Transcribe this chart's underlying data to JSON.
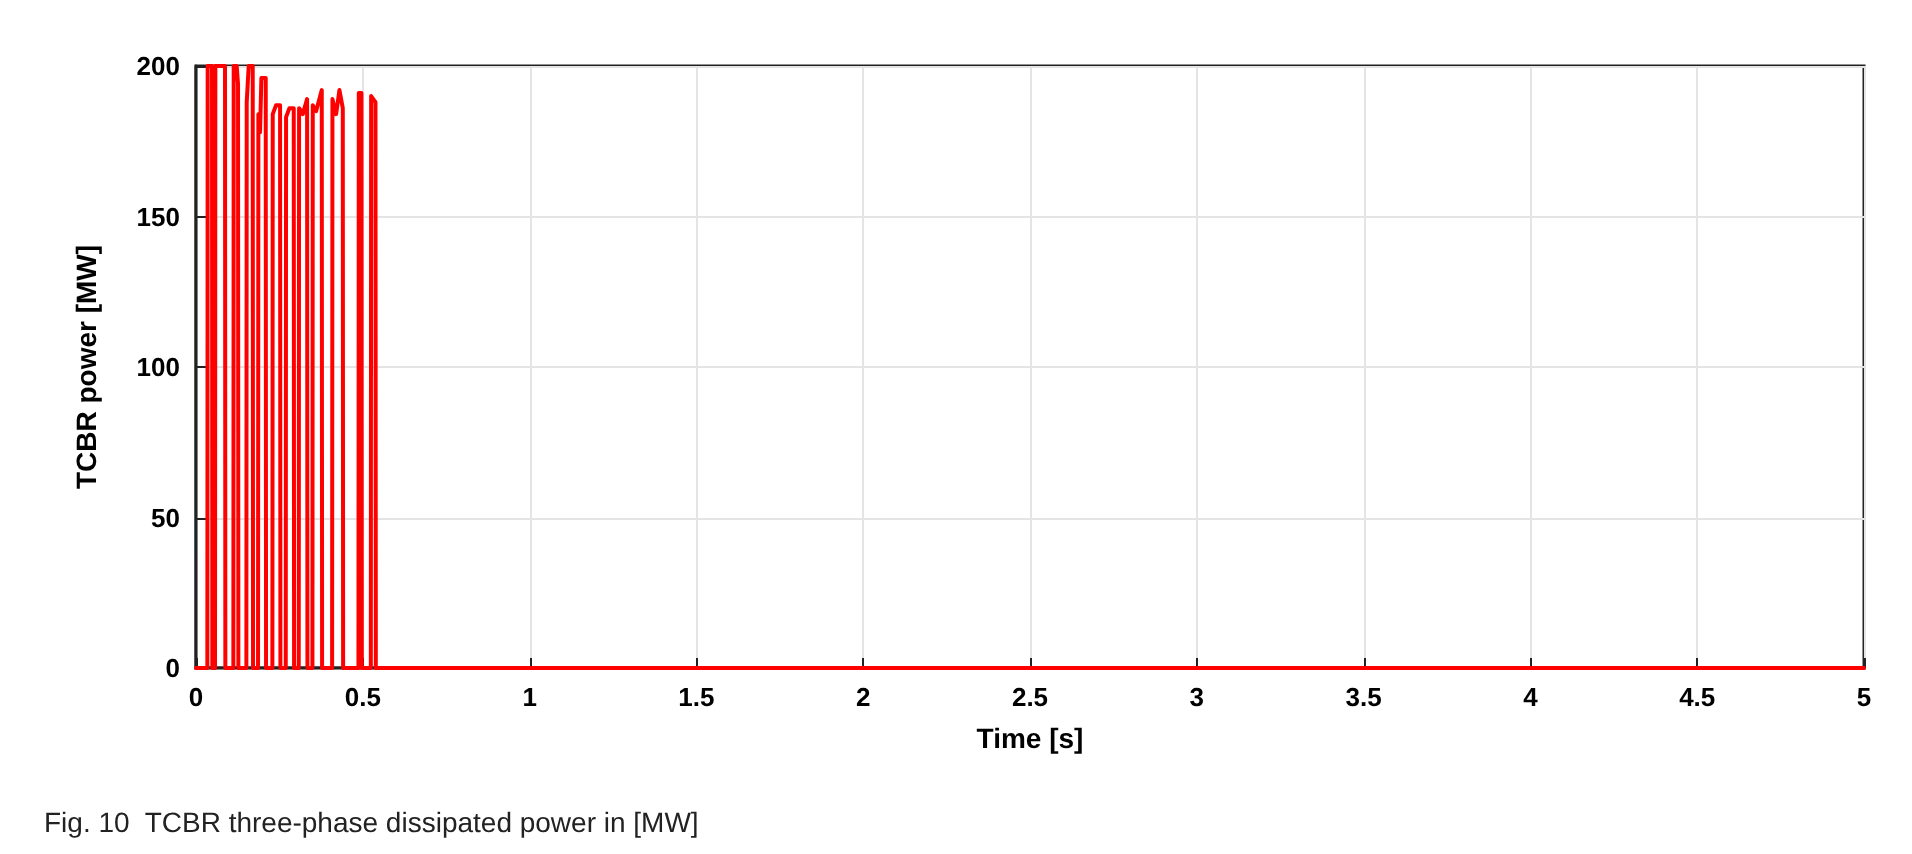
{
  "chart_data": {
    "type": "line",
    "xlabel": "Time [s]",
    "ylabel": "TCBR power [MW]",
    "annotations": [
      "Fig. 10  TCBR three-phase dissipated power in [MW]"
    ],
    "series": [
      {
        "color": "#ff0000",
        "x": [
          0,
          0.034,
          0.035,
          0.048,
          0.049,
          0.057,
          0.058,
          0.087,
          0.088,
          0.112,
          0.113,
          0.122,
          0.126,
          0.127,
          0.151,
          0.152,
          0.158,
          0.17,
          0.171,
          0.186,
          0.187,
          0.192,
          0.196,
          0.209,
          0.21,
          0.229,
          0.23,
          0.24,
          0.252,
          0.253,
          0.269,
          0.27,
          0.28,
          0.293,
          0.294,
          0.308,
          0.309,
          0.32,
          0.333,
          0.334,
          0.349,
          0.35,
          0.36,
          0.377,
          0.378,
          0.408,
          0.409,
          0.42,
          0.43,
          0.44,
          0.441,
          0.487,
          0.488,
          0.496,
          0.497,
          0.524,
          0.525,
          0.538,
          0.539,
          5
        ],
        "values": [
          0,
          0,
          200,
          200,
          0,
          0,
          200,
          200,
          0,
          0,
          200,
          200,
          194,
          0,
          0,
          188,
          200,
          200,
          0,
          0,
          184,
          178,
          196,
          196,
          0,
          0,
          184,
          187,
          187,
          0,
          0,
          183,
          186,
          186,
          0,
          0,
          186,
          184,
          189,
          0,
          0,
          187,
          185,
          192,
          0,
          0,
          189,
          184,
          192,
          186,
          0,
          0,
          191,
          191,
          0,
          0,
          190,
          188,
          0,
          0
        ]
      }
    ],
    "xlim": [
      0,
      5
    ],
    "xticks": [
      0,
      0.5,
      1,
      1.5,
      2,
      2.5,
      3,
      3.5,
      4,
      4.5,
      5
    ],
    "ylim": [
      0,
      200
    ],
    "yticks": [
      0,
      50,
      100,
      150,
      200
    ],
    "grid": true,
    "marker": "none",
    "line_style": "solid"
  }
}
